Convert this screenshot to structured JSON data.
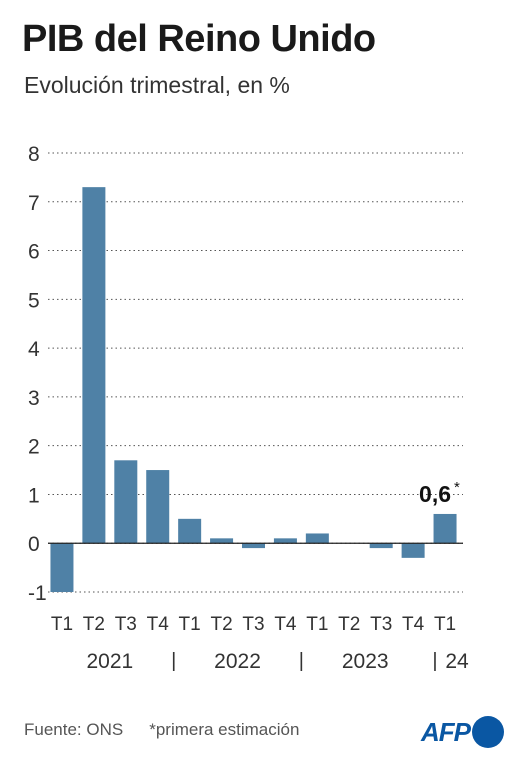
{
  "header": {
    "title": "PIB del Reino Unido",
    "subtitle": "Evolución trimestral, en %"
  },
  "chart_data": {
    "type": "bar",
    "categories": [
      "T1",
      "T2",
      "T3",
      "T4",
      "T1",
      "T2",
      "T3",
      "T4",
      "T1",
      "T2",
      "T3",
      "T4",
      "T1"
    ],
    "values": [
      -1.0,
      7.3,
      1.7,
      1.5,
      0.5,
      0.1,
      -0.1,
      0.1,
      0.2,
      0.0,
      -0.1,
      -0.3,
      0.6
    ],
    "year_labels": [
      "2021",
      "2022",
      "2023",
      "24"
    ],
    "year_separator": "|",
    "ylim": [
      -1,
      8
    ],
    "yticks": [
      "-1",
      "0",
      "1",
      "2",
      "3",
      "4",
      "5",
      "6",
      "7",
      "8"
    ],
    "grid": true,
    "bar_color": "#4f81a6",
    "annotation": {
      "category_index": 12,
      "text": "0,6",
      "marker": "*"
    }
  },
  "footer": {
    "source": "Fuente: ONS",
    "note": "*primera estimación"
  },
  "logo": {
    "text": "AFP",
    "color": "#0a57a3"
  }
}
